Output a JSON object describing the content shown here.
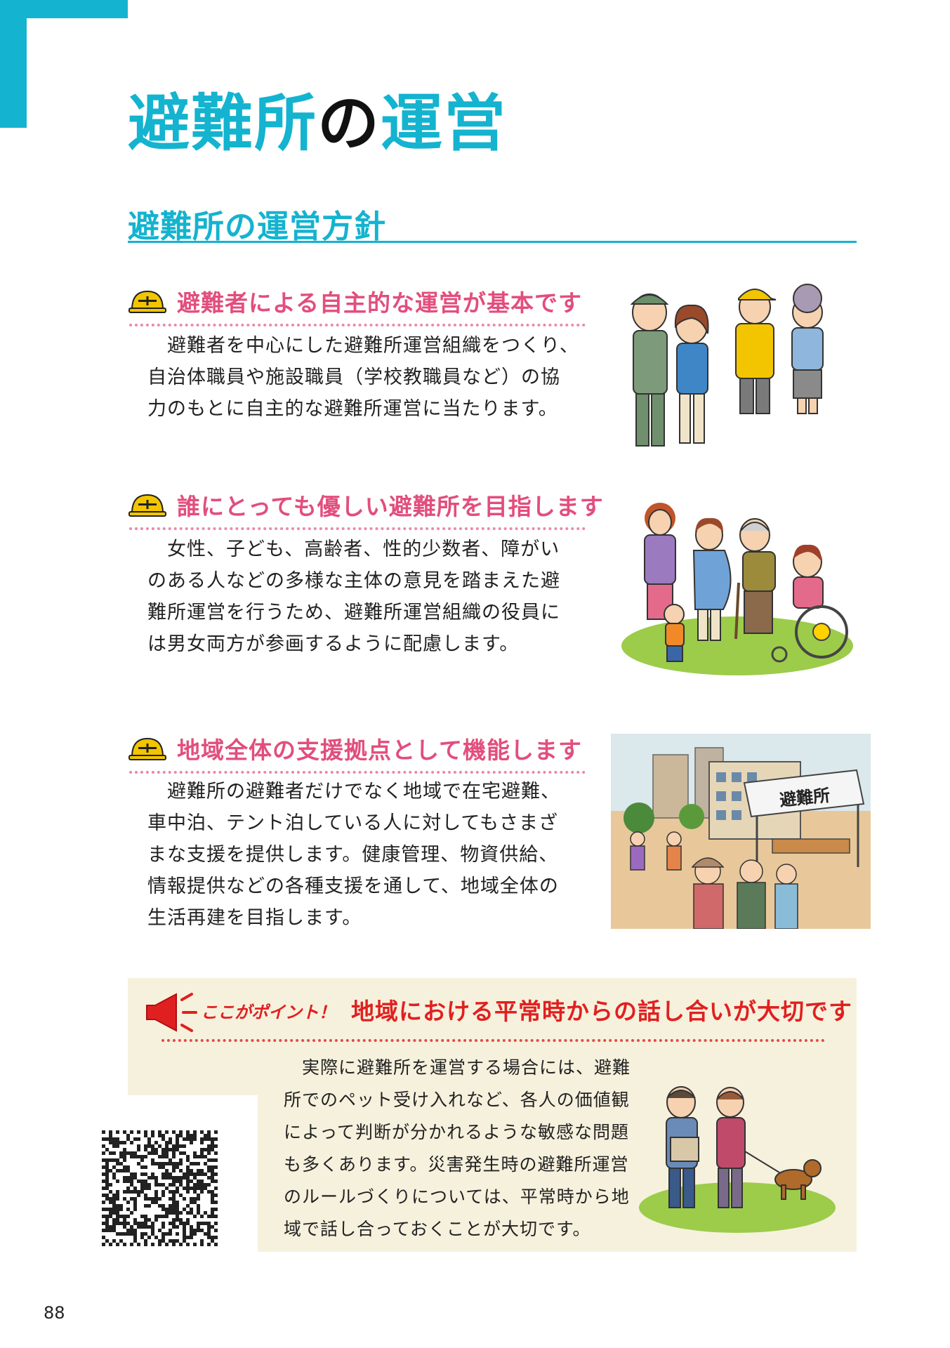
{
  "page": {
    "title_part1": "避難所",
    "title_part2": "の",
    "title_part3": "運営",
    "subtitle": "避難所の運営方針",
    "page_number": "88"
  },
  "sections": [
    {
      "heading": "避難者による自主的な運営が基本です",
      "lines": [
        "避難者を中心にした避難所運営組織をつくり、",
        "自治体職員や施設職員（学校教職員など）の協",
        "力のもとに自主的な避難所運営に当たります。"
      ]
    },
    {
      "heading": "誰にとっても優しい避難所を目指します",
      "lines": [
        "女性、子ども、高齢者、性的少数者、障がい",
        "のある人などの多様な主体の意見を踏まえた避",
        "難所運営を行うため、避難所運営組織の役員に",
        "は男女両方が参画するように配慮します。"
      ]
    },
    {
      "heading": "地域全体の支援拠点として機能します",
      "lines": [
        "避難所の避難者だけでなく地域で在宅避難、",
        "車中泊、テント泊している人に対してもさまざ",
        "まな支援を提供します。健康管理、物資供給、",
        "情報提供などの各種支援を通して、地域全体の",
        "生活再建を目指します。"
      ]
    }
  ],
  "illustration_tent_sign": "避難所",
  "point": {
    "label": "ここがポイント！",
    "heading": "地域における平常時からの話し合いが大切です",
    "lines": [
      "実際に避難所を運営する場合には、避難",
      "所でのペット受け入れなど、各人の価値観",
      "によって判断が分かれるような敏感な問題",
      "も多くあります。災害発生時の避難所運営",
      "のルールづくりについては、平常時から地",
      "域で話し合っておくことが大切です。"
    ]
  },
  "colors": {
    "accent": "#14b3cf",
    "section_heading": "#e24e7d",
    "point_red": "#e02020",
    "point_bg": "#f6f1dd",
    "helmet": "#f2c500"
  },
  "icons": [
    "corner-bracket",
    "helmet-icon",
    "megaphone-icon",
    "qr-code"
  ]
}
